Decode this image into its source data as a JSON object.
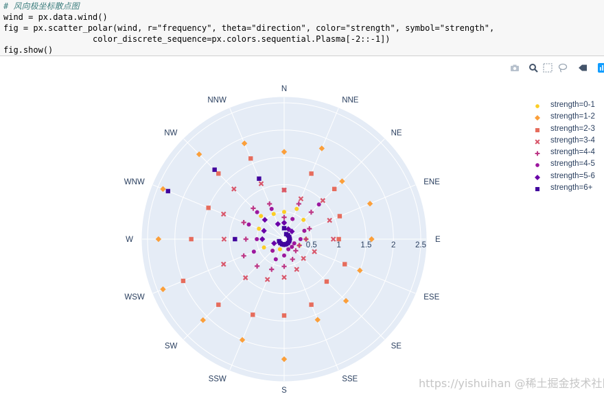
{
  "code": {
    "comment": "# 风向极坐标散点图",
    "line1": "wind = px.data.wind()",
    "line2": "fig = px.scatter_polar(wind, r=\"frequency\", theta=\"direction\", color=\"strength\", symbol=\"strength\",",
    "line3": "                  color_discrete_sequence=px.colors.sequential.Plasma[-2::-1])",
    "line4": "fig.show()"
  },
  "modebar": {
    "icons": [
      "camera-icon",
      "zoom-icon",
      "box-select-icon",
      "lasso-icon",
      "autoscale-icon",
      "plotly-logo-icon"
    ]
  },
  "watermark": "https://yishuihan @稀土掘金技术社区",
  "chart_data": {
    "type": "scatter",
    "subtype": "polar",
    "radial_axis": {
      "range": [
        0,
        2.6
      ],
      "tick_labels": [
        "0.5",
        "1",
        "1.5",
        "2",
        "2.5"
      ],
      "tick_values": [
        0.5,
        1,
        1.5,
        2,
        2.5
      ]
    },
    "angular_axis": {
      "directions": [
        "N",
        "NNE",
        "NE",
        "ENE",
        "E",
        "ESE",
        "SE",
        "SSE",
        "S",
        "SSW",
        "SW",
        "WSW",
        "W",
        "WNW",
        "NW",
        "NNW"
      ],
      "rotation": "clockwise, N at top"
    },
    "background": "#e5ecf6",
    "grid": true,
    "legend_position": "top-right",
    "series": [
      {
        "name": "strength=0-1",
        "symbol": "circle",
        "color": "#fcce25",
        "r": [
          0.5,
          0.6,
          0.5,
          0.4,
          0.4,
          0.3,
          0.2,
          0.1,
          0.1,
          0.2,
          0.3,
          0.4,
          0.4,
          0.5,
          0.6,
          0.5
        ]
      },
      {
        "name": "strength=1-2",
        "symbol": "diamond",
        "color": "#fb9f3a",
        "r": [
          1.6,
          1.8,
          1.5,
          1.7,
          1.6,
          1.5,
          1.6,
          1.6,
          2.2,
          2.0,
          2.1,
          2.4,
          2.3,
          2.4,
          2.2,
          1.9
        ]
      },
      {
        "name": "strength=2-3",
        "symbol": "square",
        "color": "#e66c5c",
        "r": [
          0.9,
          1.3,
          1.3,
          1.1,
          1.0,
          1.2,
          1.1,
          1.3,
          1.4,
          1.5,
          1.7,
          2.0,
          1.7,
          1.5,
          1.7,
          1.6
        ]
      },
      {
        "name": "strength=3-4",
        "symbol": "x",
        "color": "#d8576b",
        "r": [
          0.9,
          0.8,
          1.0,
          0.9,
          0.9,
          0.6,
          0.5,
          0.6,
          0.7,
          0.8,
          1.0,
          1.2,
          1.1,
          1.2,
          1.3,
          1.1
        ]
      },
      {
        "name": "strength=4-4",
        "symbol": "cross",
        "color": "#bd3786",
        "r": [
          0.4,
          0.7,
          0.7,
          0.5,
          0.4,
          0.3,
          0.3,
          0.4,
          0.5,
          0.6,
          0.7,
          0.8,
          0.7,
          0.8,
          0.8,
          0.7
        ]
      },
      {
        "name": "strength=4-5",
        "symbol": "circle",
        "color": "#9c179e",
        "r": [
          0.3,
          0.4,
          0.9,
          0.4,
          0.3,
          0.2,
          0.2,
          0.2,
          0.3,
          0.4,
          0.3,
          0.6,
          0.5,
          0.7,
          0.7,
          0.6
        ]
      },
      {
        "name": "strength=5-6",
        "symbol": "diamond",
        "color": "#6a00a8",
        "r": [
          0.3,
          0.2,
          0.2,
          0.1,
          0.1,
          0.1,
          0.1,
          0.1,
          0.1,
          0.1,
          0.1,
          0.2,
          0.4,
          0.4,
          0.5,
          0.3
        ]
      },
      {
        "name": "strength=6+",
        "symbol": "square",
        "color": "#41049d",
        "r": [
          0.2,
          0.1,
          0.1,
          0.1,
          0.1,
          0.1,
          0.1,
          0.1,
          0.1,
          0.1,
          0.1,
          0.1,
          0.9,
          2.3,
          1.8,
          1.2
        ]
      }
    ]
  }
}
